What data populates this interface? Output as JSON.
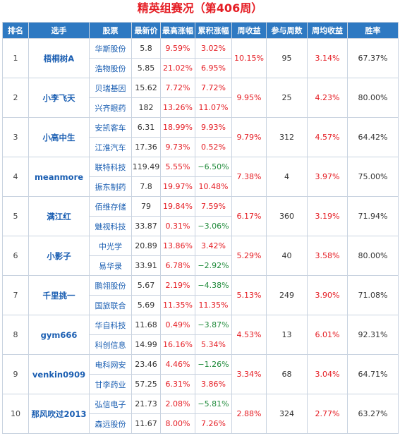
{
  "title": "精英组赛况（第406周）",
  "colors": {
    "header_bg": "#2e79c2",
    "up": "#e51c23",
    "down": "#1f8a3a",
    "link": "#1a5eb2"
  },
  "headers": [
    "排名",
    "选手",
    "股票",
    "最新价",
    "最高涨幅",
    "累积涨幅",
    "周收益",
    "参与周数",
    "周均收益",
    "胜率"
  ],
  "rows": [
    {
      "rank": "1",
      "player": "梧桐树A",
      "weekly_return": "10.15%",
      "weeks": "95",
      "avg_return": "3.14%",
      "win_rate": "67.37%",
      "stocks": [
        {
          "name": "华斯股份",
          "price": "5.8",
          "max_gain": "9.59%",
          "cum_gain": "3.02%"
        },
        {
          "name": "浩物股份",
          "price": "5.85",
          "max_gain": "21.02%",
          "cum_gain": "6.95%"
        }
      ]
    },
    {
      "rank": "2",
      "player": "小李飞天",
      "weekly_return": "9.95%",
      "weeks": "25",
      "avg_return": "4.23%",
      "win_rate": "80.00%",
      "stocks": [
        {
          "name": "贝瑞基因",
          "price": "15.62",
          "max_gain": "7.72%",
          "cum_gain": "7.72%"
        },
        {
          "name": "兴齐眼药",
          "price": "182",
          "max_gain": "13.26%",
          "cum_gain": "11.07%"
        }
      ]
    },
    {
      "rank": "3",
      "player": "小高中生",
      "weekly_return": "9.79%",
      "weeks": "312",
      "avg_return": "4.57%",
      "win_rate": "64.42%",
      "stocks": [
        {
          "name": "安凯客车",
          "price": "6.31",
          "max_gain": "18.99%",
          "cum_gain": "9.93%"
        },
        {
          "name": "江淮汽车",
          "price": "17.36",
          "max_gain": "9.73%",
          "cum_gain": "0.52%"
        }
      ]
    },
    {
      "rank": "4",
      "player": "meanmore",
      "weekly_return": "7.38%",
      "weeks": "4",
      "avg_return": "3.97%",
      "win_rate": "75.00%",
      "stocks": [
        {
          "name": "联特科技",
          "price": "119.49",
          "max_gain": "5.55%",
          "cum_gain": "−6.50%"
        },
        {
          "name": "振东制药",
          "price": "7.8",
          "max_gain": "19.97%",
          "cum_gain": "10.48%"
        }
      ]
    },
    {
      "rank": "5",
      "player": "满江红",
      "weekly_return": "6.17%",
      "weeks": "360",
      "avg_return": "3.19%",
      "win_rate": "71.94%",
      "stocks": [
        {
          "name": "佰维存储",
          "price": "79",
          "max_gain": "19.84%",
          "cum_gain": "7.59%"
        },
        {
          "name": "魅视科技",
          "price": "33.87",
          "max_gain": "0.31%",
          "cum_gain": "−3.06%"
        }
      ]
    },
    {
      "rank": "6",
      "player": "小影子",
      "weekly_return": "5.29%",
      "weeks": "40",
      "avg_return": "3.58%",
      "win_rate": "80.00%",
      "stocks": [
        {
          "name": "中光学",
          "price": "20.89",
          "max_gain": "13.86%",
          "cum_gain": "3.42%"
        },
        {
          "name": "易华录",
          "price": "33.91",
          "max_gain": "6.78%",
          "cum_gain": "−2.92%"
        }
      ]
    },
    {
      "rank": "7",
      "player": "千里挑一",
      "weekly_return": "5.13%",
      "weeks": "249",
      "avg_return": "3.90%",
      "win_rate": "71.08%",
      "stocks": [
        {
          "name": "鹏翎股份",
          "price": "5.67",
          "max_gain": "2.19%",
          "cum_gain": "−4.38%"
        },
        {
          "name": "国旅联合",
          "price": "5.69",
          "max_gain": "11.35%",
          "cum_gain": "11.35%"
        }
      ]
    },
    {
      "rank": "8",
      "player": "gym666",
      "weekly_return": "4.53%",
      "weeks": "13",
      "avg_return": "6.01%",
      "win_rate": "92.31%",
      "stocks": [
        {
          "name": "华自科技",
          "price": "11.68",
          "max_gain": "0.49%",
          "cum_gain": "−3.87%"
        },
        {
          "name": "科创信息",
          "price": "14.99",
          "max_gain": "16.16%",
          "cum_gain": "5.34%"
        }
      ]
    },
    {
      "rank": "9",
      "player": "venkin0909",
      "weekly_return": "3.34%",
      "weeks": "68",
      "avg_return": "3.04%",
      "win_rate": "64.71%",
      "stocks": [
        {
          "name": "电科网安",
          "price": "23.46",
          "max_gain": "4.46%",
          "cum_gain": "−1.26%"
        },
        {
          "name": "甘李药业",
          "price": "57.25",
          "max_gain": "6.31%",
          "cum_gain": "3.86%"
        }
      ]
    },
    {
      "rank": "10",
      "player": "那风吹过2013",
      "weekly_return": "2.88%",
      "weeks": "324",
      "avg_return": "2.77%",
      "win_rate": "63.27%",
      "stocks": [
        {
          "name": "弘信电子",
          "price": "21.73",
          "max_gain": "2.08%",
          "cum_gain": "−5.81%"
        },
        {
          "name": "森远股份",
          "price": "11.67",
          "max_gain": "8.00%",
          "cum_gain": "7.26%"
        }
      ]
    }
  ]
}
